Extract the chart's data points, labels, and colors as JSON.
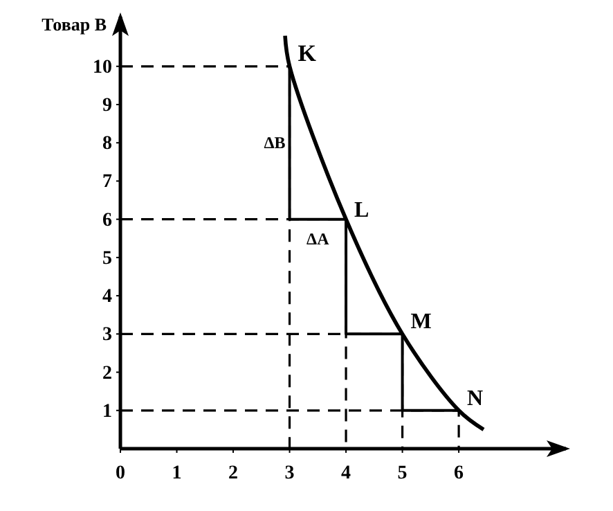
{
  "chart_data": {
    "type": "line",
    "ylabel": "Товар В",
    "xlim": [
      0,
      7.9
    ],
    "ylim": [
      0,
      11.3
    ],
    "xticks": [
      0,
      1,
      2,
      3,
      4,
      5,
      6
    ],
    "yticks": [
      1,
      2,
      3,
      4,
      5,
      6,
      7,
      8,
      9,
      10
    ],
    "grid": false,
    "marker": "none",
    "series": [
      {
        "color": "#000000",
        "x": [
          2.92,
          3,
          4,
          5,
          6,
          6.44
        ],
        "values": [
          10.8,
          10,
          6,
          3,
          1,
          0.5
        ]
      },
      {
        "color": "#000000",
        "x": [
          3,
          3,
          4,
          4,
          5,
          5,
          6
        ],
        "values": [
          10,
          6,
          6,
          3,
          3,
          1,
          1
        ]
      },
      {
        "color": "#000000",
        "line_style": "dashed",
        "x": [
          0,
          3,
          3
        ],
        "values": [
          10,
          10,
          0
        ]
      },
      {
        "color": "#000000",
        "line_style": "dashed",
        "x": [
          0,
          4,
          4
        ],
        "values": [
          6,
          6,
          0
        ]
      },
      {
        "color": "#000000",
        "line_style": "dashed",
        "x": [
          0,
          5,
          5
        ],
        "values": [
          3,
          3,
          0
        ]
      },
      {
        "color": "#000000",
        "line_style": "dashed",
        "x": [
          0,
          6,
          6
        ],
        "values": [
          1,
          1,
          0
        ]
      }
    ],
    "annotations": [
      {
        "text": "K",
        "x": 3,
        "y": 10
      },
      {
        "text": "L",
        "x": 4,
        "y": 6
      },
      {
        "text": "M",
        "x": 5,
        "y": 3
      },
      {
        "text": "N",
        "x": 6,
        "y": 1
      },
      {
        "text": "ΔB",
        "x": 3,
        "y": 8
      },
      {
        "text": "ΔA",
        "x": 3.5,
        "y": 6
      }
    ]
  }
}
